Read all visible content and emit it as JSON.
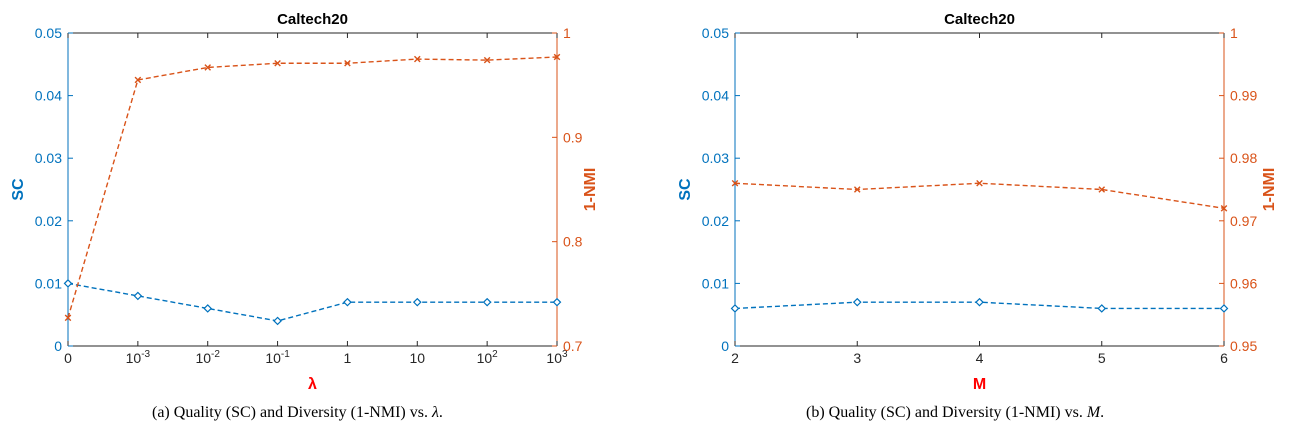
{
  "colors": {
    "sc": "#0072BD",
    "nmi": "#D95319",
    "xlabel_red": "#FF0000",
    "axis": "#262626"
  },
  "chart_data": [
    {
      "type": "line",
      "title": "Caltech20",
      "xlabel": "λ",
      "ylabel_left": "SC",
      "ylabel_right": "1-NMI",
      "categories": [
        "0",
        "10^-3",
        "10^-2",
        "10^-1",
        "1",
        "10",
        "10^2",
        "10^3"
      ],
      "ylim_left": [
        0,
        0.05
      ],
      "yticks_left": [
        "0",
        "0.01",
        "0.02",
        "0.03",
        "0.04",
        "0.05"
      ],
      "ylim_right": [
        0.7,
        1.0
      ],
      "yticks_right": [
        "0.7",
        "0.8",
        "0.9",
        "1"
      ],
      "grid": false,
      "series": [
        {
          "axis": "left",
          "marker": "diamond",
          "color": "#0072BD",
          "values": [
            0.01,
            0.008,
            0.006,
            0.004,
            0.007,
            0.007,
            0.007,
            0.007
          ]
        },
        {
          "axis": "right",
          "marker": "x",
          "color": "#D95319",
          "values": [
            0.727,
            0.955,
            0.967,
            0.971,
            0.971,
            0.975,
            0.974,
            0.977
          ]
        }
      ],
      "caption_text": "(a) Quality (SC) and Diversity (1-NMI) vs.",
      "caption_symbol": "λ"
    },
    {
      "type": "line",
      "title": "Caltech20",
      "xlabel": "M",
      "ylabel_left": "SC",
      "ylabel_right": "1-NMI",
      "categories": [
        "2",
        "3",
        "4",
        "5",
        "6"
      ],
      "ylim_left": [
        0,
        0.05
      ],
      "yticks_left": [
        "0",
        "0.01",
        "0.02",
        "0.03",
        "0.04",
        "0.05"
      ],
      "ylim_right": [
        0.95,
        1.0
      ],
      "yticks_right": [
        "0.95",
        "0.96",
        "0.97",
        "0.98",
        "0.99",
        "1"
      ],
      "grid": false,
      "series": [
        {
          "axis": "left",
          "marker": "diamond",
          "color": "#0072BD",
          "values": [
            0.006,
            0.007,
            0.007,
            0.006,
            0.006
          ]
        },
        {
          "axis": "right",
          "marker": "x",
          "color": "#D95319",
          "values": [
            0.976,
            0.975,
            0.976,
            0.975,
            0.972
          ]
        }
      ],
      "caption_text": "(b) Quality (SC) and Diversity (1-NMI) vs.",
      "caption_symbol": "M"
    }
  ]
}
